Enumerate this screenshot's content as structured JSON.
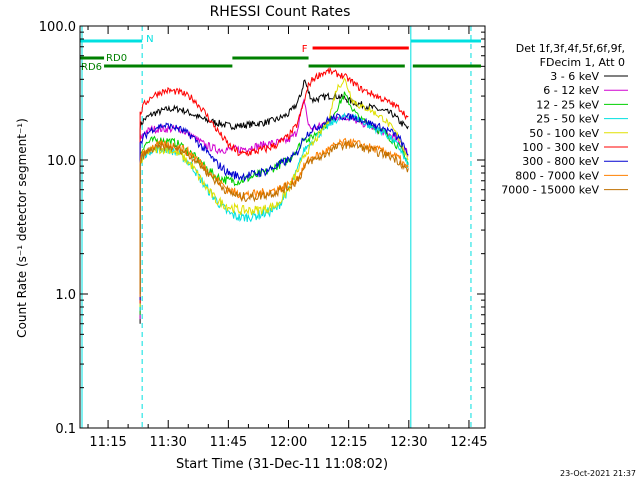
{
  "chart_data": {
    "type": "line",
    "title": "RHESSI Count Rates",
    "xlabel": "Start Time (31-Dec-11 11:08:02)",
    "ylabel": "Count Rate (s⁻¹ detector segment⁻¹)",
    "y_scale": "log",
    "ylim": [
      0.1,
      100.0
    ],
    "y_ticks": [
      {
        "value": 0.1,
        "label": "0.1"
      },
      {
        "value": 1.0,
        "label": "1.0"
      },
      {
        "value": 10.0,
        "label": "10.0"
      },
      {
        "value": 100.0,
        "label": "100.0"
      }
    ],
    "xlim_minutes": [
      0,
      101
    ],
    "x_ticks": [
      {
        "minute": 7,
        "label": "11:15"
      },
      {
        "minute": 22,
        "label": "11:30"
      },
      {
        "minute": 37,
        "label": "11:45"
      },
      {
        "minute": 52,
        "label": "12:00"
      },
      {
        "minute": 67,
        "label": "12:15"
      },
      {
        "minute": 82,
        "label": "12:30"
      },
      {
        "minute": 97,
        "label": "12:45"
      }
    ],
    "legend": {
      "placement": "right",
      "header": [
        "Det 1f,3f,4f,5f,6f,9f,",
        "FDecim 1, Att 0"
      ]
    },
    "x_minutes": [
      15,
      16,
      18,
      20,
      22,
      25,
      28,
      31,
      34,
      37,
      40,
      43,
      46,
      49,
      52,
      54,
      55,
      56,
      57,
      58,
      60,
      62,
      64,
      66,
      68,
      70,
      72,
      74,
      76,
      78,
      80,
      81,
      82
    ],
    "series": [
      {
        "name": "3 - 6 keV",
        "color": "#000000",
        "values": [
          18,
          20,
          22,
          23,
          24,
          24,
          22,
          20,
          19,
          18,
          18,
          18.5,
          19,
          20,
          22,
          26,
          30,
          40,
          32,
          28,
          29,
          30,
          30,
          29,
          27,
          26,
          25,
          24,
          23,
          22,
          19,
          18,
          17
        ]
      },
      {
        "name": "6 - 12 keV",
        "color": "#d000d0",
        "values": [
          14,
          16,
          17,
          17,
          17,
          17,
          15,
          13,
          12,
          12,
          12,
          12.5,
          13,
          13.5,
          14,
          16,
          22,
          28,
          18,
          17,
          18,
          20,
          21,
          21,
          20,
          19,
          18,
          17,
          16,
          15,
          13,
          12,
          11
        ]
      },
      {
        "name": "12 - 25 keV",
        "color": "#00d000",
        "values": [
          11,
          13,
          14,
          14,
          14,
          13,
          11,
          9,
          7.5,
          7,
          7,
          7.5,
          8,
          9,
          10,
          12,
          13,
          15,
          14,
          15,
          17,
          19,
          24,
          31,
          24,
          20,
          19,
          17,
          16,
          14,
          12,
          11,
          9
        ]
      },
      {
        "name": "25 - 50 keV",
        "color": "#00e0e0",
        "values": [
          9,
          11,
          12,
          12,
          12,
          11,
          9,
          6.5,
          5,
          4,
          3.7,
          3.8,
          4,
          4.3,
          6,
          8,
          10,
          12,
          13,
          14,
          16,
          18,
          20,
          21,
          21,
          20,
          18,
          17,
          16,
          14,
          12,
          10,
          9
        ]
      },
      {
        "name": "50 - 100 keV",
        "color": "#e0e000",
        "values": [
          9,
          11,
          12,
          12,
          12,
          11,
          9,
          6.5,
          5,
          4.5,
          4.2,
          4.2,
          4.3,
          4.6,
          6,
          8,
          9,
          11,
          12,
          13,
          16,
          20,
          34,
          40,
          28,
          25,
          24,
          22,
          20,
          17,
          14,
          12,
          10
        ]
      },
      {
        "name": "100 - 300 keV",
        "color": "#ff0000",
        "values": [
          22,
          26,
          30,
          32,
          33,
          32,
          29,
          23,
          17,
          13,
          11,
          11.5,
          12,
          13,
          15,
          18,
          22,
          28,
          36,
          40,
          44,
          46,
          44,
          42,
          38,
          34,
          32,
          30,
          28,
          26,
          24,
          22,
          20
        ]
      },
      {
        "name": "300 - 800 keV",
        "color": "#0000d0",
        "values": [
          13,
          15,
          17,
          18,
          18,
          17,
          15,
          12,
          9.5,
          8,
          7.5,
          7.8,
          8.2,
          9,
          10,
          11,
          13,
          15,
          16,
          17,
          18,
          20,
          21,
          21,
          21,
          20,
          19,
          18,
          17,
          16,
          14,
          12,
          11
        ]
      },
      {
        "name": "800 - 7000 keV",
        "color": "#ff8000",
        "values": [
          10,
          11.5,
          12.5,
          13,
          13,
          12.5,
          11,
          9,
          7.2,
          6,
          5.5,
          5.5,
          5.7,
          6,
          6.5,
          7.2,
          8,
          9,
          10,
          10.5,
          11,
          12,
          13,
          13.5,
          13.5,
          13,
          12.5,
          12,
          11.5,
          11,
          10,
          9,
          8.5
        ]
      },
      {
        "name": "7000 - 15000 keV",
        "color": "#c07000",
        "values": [
          9.5,
          11,
          12,
          12.5,
          12.5,
          12,
          10.5,
          8.6,
          6.9,
          5.8,
          5.3,
          5.3,
          5.5,
          5.8,
          6.3,
          7,
          7.7,
          8.7,
          9.6,
          10,
          10.5,
          11.5,
          12.5,
          13,
          13,
          12.5,
          12,
          11.5,
          11,
          10.5,
          9.6,
          8.7,
          8.2
        ]
      }
    ],
    "vertical_lines": [
      {
        "minute": 0.5,
        "style": "solid"
      },
      {
        "minute": 15.5,
        "style": "dashed"
      },
      {
        "minute": 82.5,
        "style": "solid"
      },
      {
        "minute": 97.5,
        "style": "dashed"
      }
    ],
    "flag_bars": [
      {
        "label": "N",
        "color": "#00e0e0",
        "segments": [
          [
            0,
            15.5
          ],
          [
            82.5,
            100
          ]
        ]
      },
      {
        "label": "F",
        "color": "#ff0000",
        "segments": [
          [
            58,
            82
          ]
        ]
      },
      {
        "label": "RD0",
        "color": "#008000",
        "segments": [
          [
            0,
            6
          ],
          [
            38,
            57
          ]
        ]
      },
      {
        "label": "RD6",
        "color": "#008000",
        "segments": [
          [
            6,
            38
          ],
          [
            57,
            81
          ],
          [
            83,
            100
          ]
        ]
      }
    ],
    "timestamp": "23-Oct-2021 21:37"
  }
}
